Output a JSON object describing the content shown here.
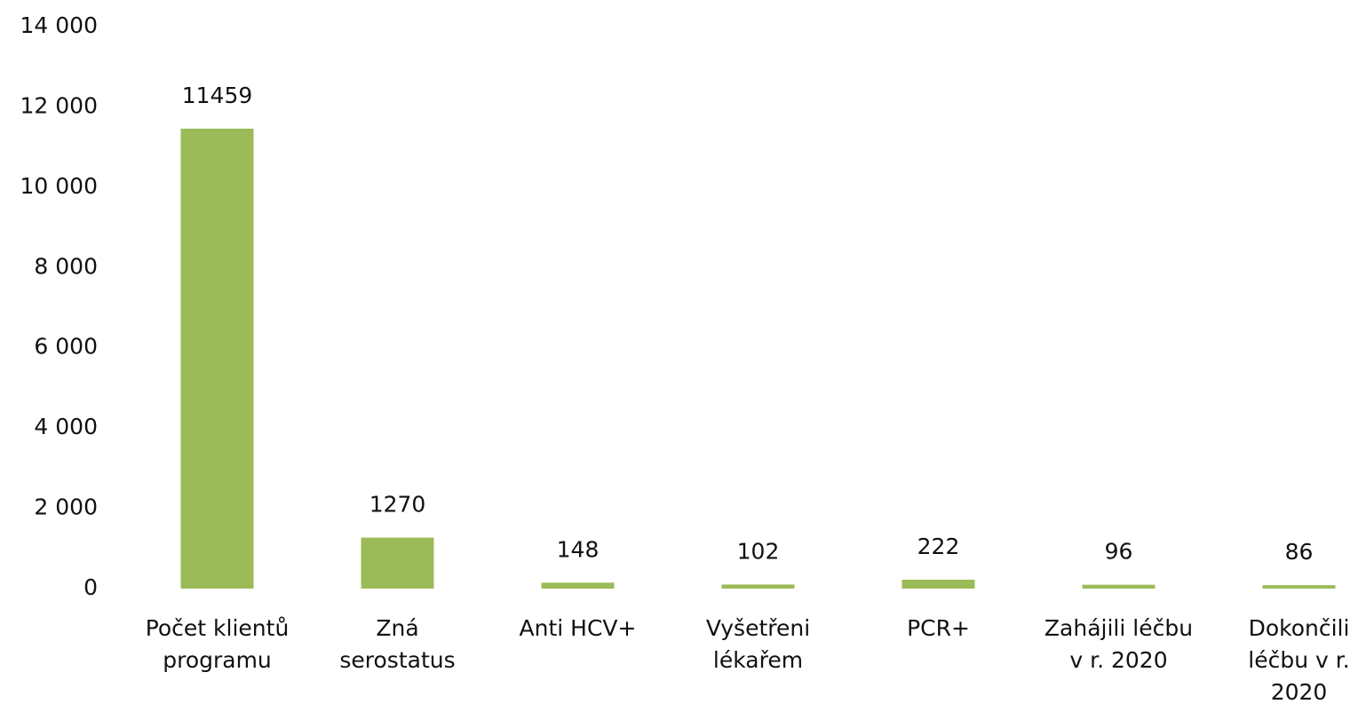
{
  "chart_data": {
    "type": "bar",
    "categories": [
      "Počet klientů\nprogramu",
      "Zná\nserostatus",
      "Anti HCV+",
      "Vyšetřeni\nlékařem",
      "PCR+",
      "Zahájili léčbu\nv r. 2020",
      "Dokončili\nléčbu v r.\n2020"
    ],
    "values": [
      11459,
      1270,
      148,
      102,
      222,
      96,
      86
    ],
    "color": "#9bbb59",
    "ylim": [
      0,
      14000
    ],
    "yticks": [
      0,
      {
        "value": 2000,
        "label": "2 000"
      },
      {
        "value": 4000,
        "label": "4 000"
      },
      {
        "value": 6000,
        "label": "6 000"
      },
      {
        "value": 8000,
        "label": "8 000"
      },
      {
        "value": 10000,
        "label": "10 000"
      },
      {
        "value": 12000,
        "label": "12 000"
      },
      {
        "value": 14000,
        "label": "14 000"
      }
    ],
    "grid": false
  }
}
